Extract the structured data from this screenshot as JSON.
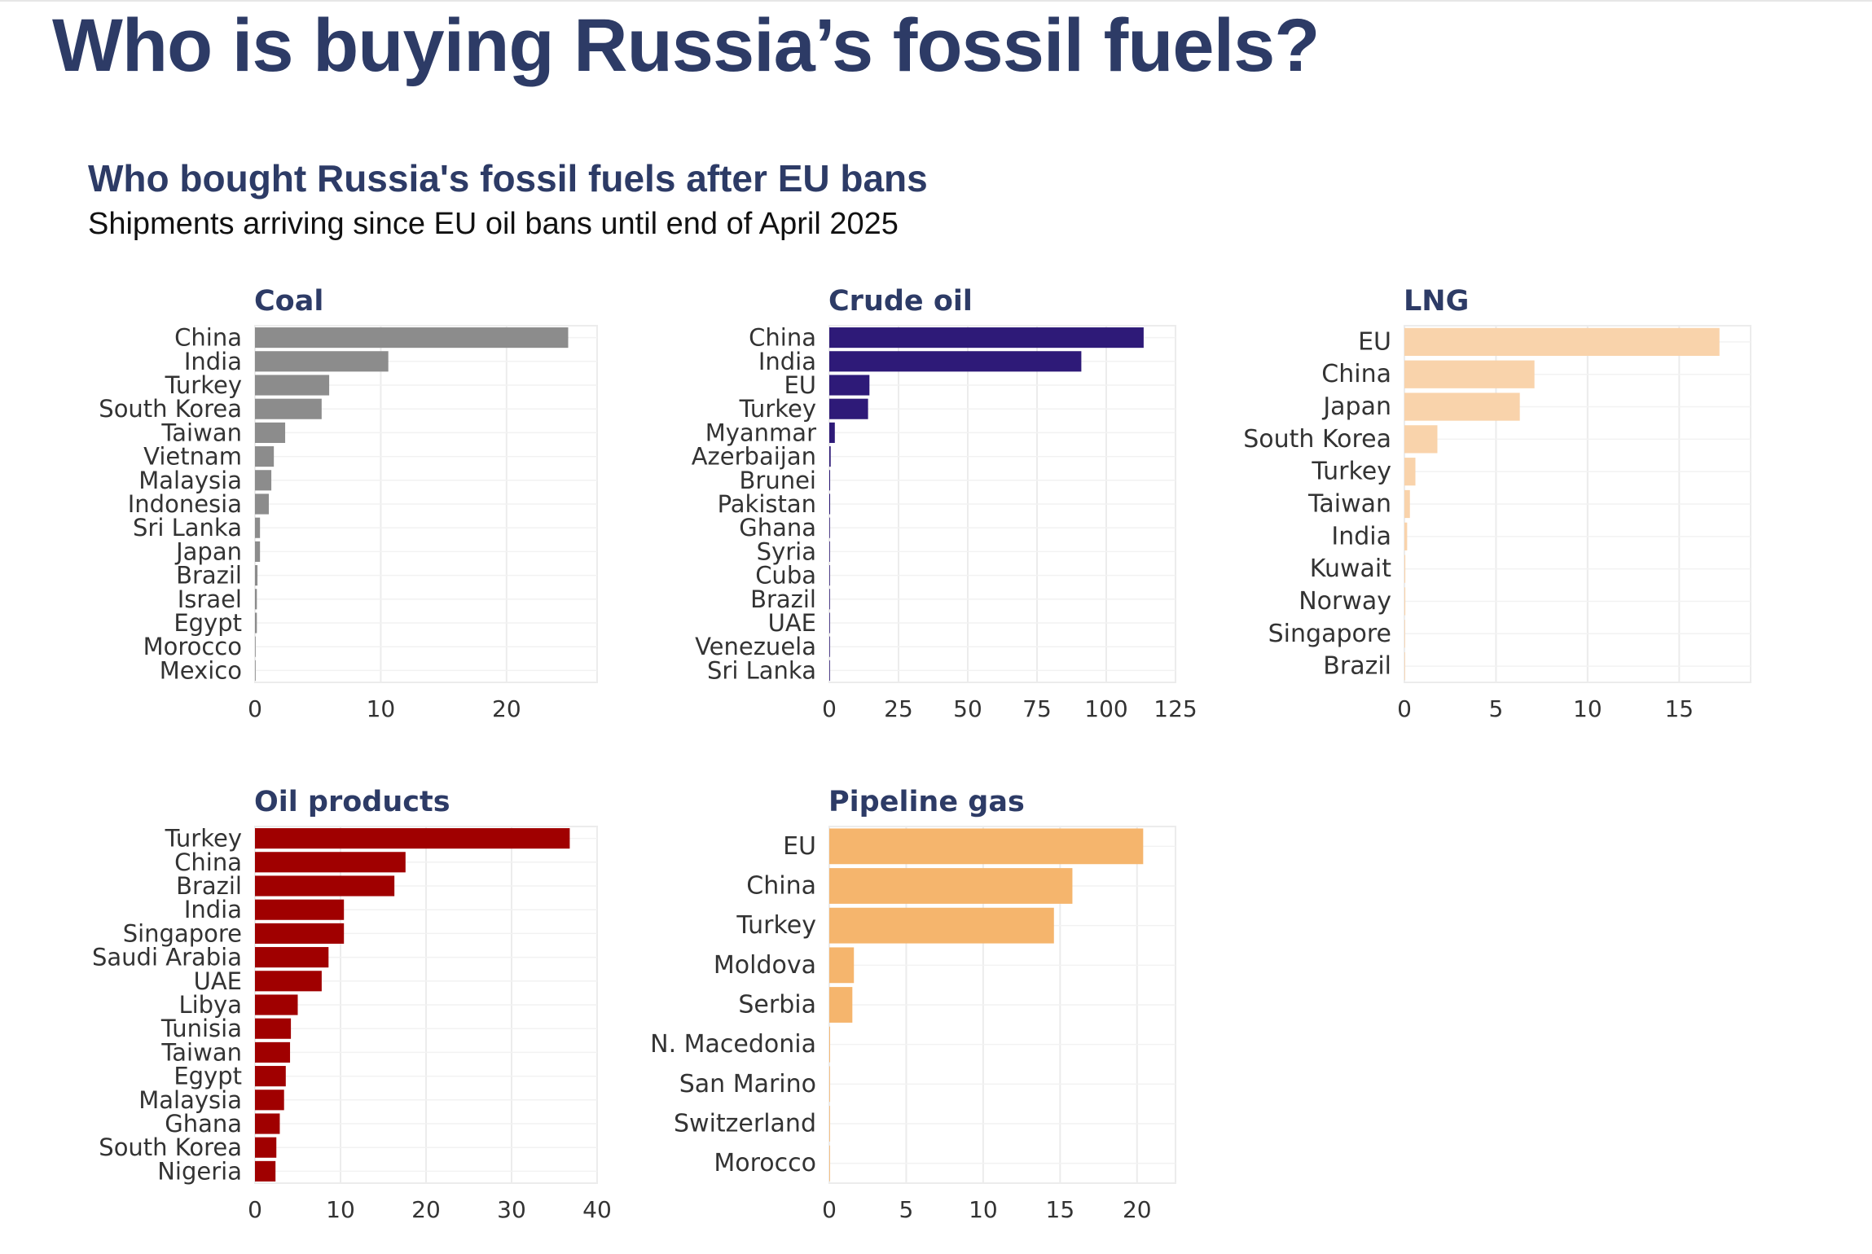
{
  "page": {
    "title": "Who is buying Russia’s fossil fuels?"
  },
  "chart": {
    "title": "Who bought Russia's fossil fuels after EU bans",
    "subtitle": "Shipments arriving since EU oil bans until end of April 2025"
  },
  "chart_data": [
    {
      "type": "bar",
      "orientation": "horizontal",
      "panel": "coal",
      "title": "Coal",
      "color": "#8c8c8c",
      "categories": [
        "China",
        "India",
        "Turkey",
        "South Korea",
        "Taiwan",
        "Vietnam",
        "Malaysia",
        "Indonesia",
        "Sri Lanka",
        "Japan",
        "Brazil",
        "Israel",
        "Egypt",
        "Morocco",
        "Mexico"
      ],
      "values": [
        24.9,
        10.6,
        5.9,
        5.3,
        2.4,
        1.5,
        1.3,
        1.1,
        0.4,
        0.4,
        0.2,
        0.15,
        0.15,
        0.05,
        0.03
      ],
      "xlim": [
        0,
        27.2
      ],
      "xticks": [
        0,
        10,
        20
      ],
      "grid": true
    },
    {
      "type": "bar",
      "orientation": "horizontal",
      "panel": "crude",
      "title": "Crude oil",
      "color": "#2e1a78",
      "categories": [
        "China",
        "India",
        "EU",
        "Turkey",
        "Myanmar",
        "Azerbaijan",
        "Brunei",
        "Pakistan",
        "Ghana",
        "Syria",
        "Cuba",
        "Brazil",
        "UAE",
        "Venezuela",
        "Sri Lanka"
      ],
      "values": [
        113.5,
        91.0,
        14.5,
        14.0,
        2.0,
        0.5,
        0.3,
        0.3,
        0.2,
        0.2,
        0.2,
        0.1,
        0.1,
        0.05,
        0.05
      ],
      "xlim": [
        0,
        125
      ],
      "xticks": [
        0,
        25,
        50,
        75,
        100,
        125
      ],
      "grid": true
    },
    {
      "type": "bar",
      "orientation": "horizontal",
      "panel": "lng",
      "title": "LNG",
      "color": "#f9d3ab",
      "categories": [
        "EU",
        "China",
        "Japan",
        "South Korea",
        "Turkey",
        "Taiwan",
        "India",
        "Kuwait",
        "Norway",
        "Singapore",
        "Brazil"
      ],
      "values": [
        17.2,
        7.1,
        6.3,
        1.8,
        0.6,
        0.3,
        0.15,
        0.05,
        0.05,
        0.03,
        0.02
      ],
      "xlim": [
        0,
        18.9
      ],
      "xticks": [
        0,
        5,
        10,
        15
      ],
      "grid": true
    },
    {
      "type": "bar",
      "orientation": "horizontal",
      "panel": "oil_products",
      "title": "Oil products",
      "color": "#a00000",
      "categories": [
        "Turkey",
        "China",
        "Brazil",
        "India",
        "Singapore",
        "Saudi Arabia",
        "UAE",
        "Libya",
        "Tunisia",
        "Taiwan",
        "Egypt",
        "Malaysia",
        "Ghana",
        "South Korea",
        "Nigeria"
      ],
      "values": [
        36.8,
        17.6,
        16.3,
        10.4,
        10.4,
        8.6,
        7.8,
        5.0,
        4.2,
        4.1,
        3.6,
        3.4,
        2.9,
        2.5,
        2.4
      ],
      "xlim": [
        0,
        40
      ],
      "xticks": [
        0,
        10,
        20,
        30,
        40
      ],
      "grid": true
    },
    {
      "type": "bar",
      "orientation": "horizontal",
      "panel": "pipeline_gas",
      "title": "Pipeline gas",
      "color": "#f5b56d",
      "categories": [
        "EU",
        "China",
        "Turkey",
        "Moldova",
        "Serbia",
        "N. Macedonia",
        "San Marino",
        "Switzerland",
        "Morocco"
      ],
      "values": [
        20.4,
        15.8,
        14.6,
        1.6,
        1.5,
        0.05,
        0.02,
        0.02,
        0.01
      ],
      "xlim": [
        0,
        22.5
      ],
      "xticks": [
        0,
        5,
        10,
        15,
        20
      ],
      "grid": true
    }
  ]
}
